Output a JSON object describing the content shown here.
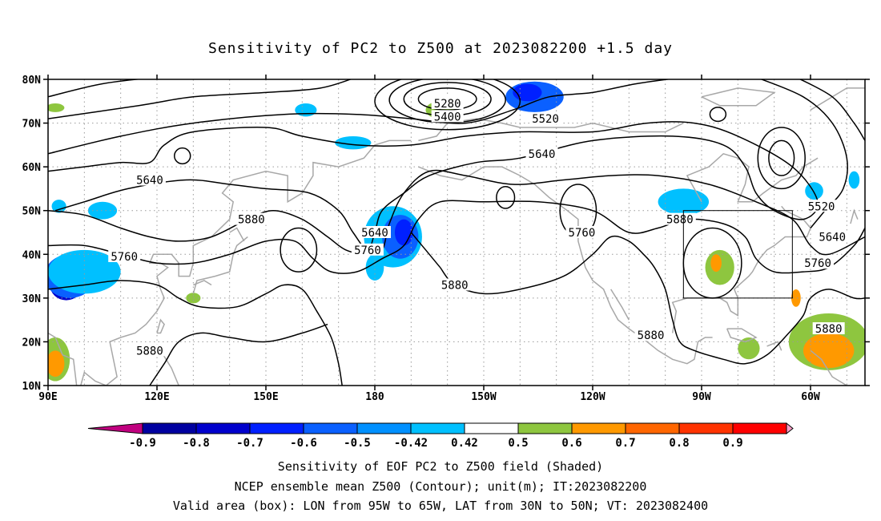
{
  "title": "Sensitivity of PC2 to Z500 at 2023082200 +1.5 day",
  "axes": {
    "lat_labels": [
      "80N",
      "70N",
      "60N",
      "50N",
      "40N",
      "30N",
      "20N",
      "10N"
    ],
    "lat_values": [
      80,
      70,
      60,
      50,
      40,
      30,
      20,
      10
    ],
    "lon_labels": [
      "90E",
      "120E",
      "150E",
      "180",
      "150W",
      "120W",
      "90W",
      "60W"
    ],
    "lon_values": [
      90,
      120,
      150,
      180,
      210,
      240,
      270,
      300
    ],
    "lon_range": [
      90,
      315
    ],
    "lat_range": [
      10,
      80
    ],
    "grid": "dotted"
  },
  "contours": {
    "field": "Z500",
    "unit": "m",
    "labels": [
      {
        "text": "5280",
        "lon": 200,
        "lat": 74.5
      },
      {
        "text": "5400",
        "lon": 200,
        "lat": 71.5
      },
      {
        "text": "5520",
        "lon": 227,
        "lat": 71
      },
      {
        "text": "5640",
        "lon": 118,
        "lat": 57
      },
      {
        "text": "5640",
        "lon": 226,
        "lat": 63
      },
      {
        "text": "5640",
        "lon": 180,
        "lat": 45
      },
      {
        "text": "5640",
        "lon": 306,
        "lat": 44
      },
      {
        "text": "5520",
        "lon": 303,
        "lat": 51
      },
      {
        "text": "5760",
        "lon": 111,
        "lat": 39.5
      },
      {
        "text": "5760",
        "lon": 178,
        "lat": 41
      },
      {
        "text": "5760",
        "lon": 237,
        "lat": 45
      },
      {
        "text": "5760",
        "lon": 302,
        "lat": 38
      },
      {
        "text": "5880",
        "lon": 146,
        "lat": 48
      },
      {
        "text": "5880",
        "lon": 264,
        "lat": 48
      },
      {
        "text": "5880",
        "lon": 202,
        "lat": 33
      },
      {
        "text": "5880",
        "lon": 118,
        "lat": 18
      },
      {
        "text": "5880",
        "lon": 256,
        "lat": 21.5
      },
      {
        "text": "5880",
        "lon": 305,
        "lat": 23
      }
    ]
  },
  "shading": {
    "field": "Sensitivity of EOF PC2",
    "regions": [
      {
        "lon": 95,
        "lat": 33,
        "rlon": 4.5,
        "rlat": 3.5,
        "color": "#0000cd"
      },
      {
        "lon": 96,
        "lat": 35,
        "rlon": 7,
        "rlat": 5,
        "color": "#0a60ff"
      },
      {
        "lon": 100,
        "lat": 36,
        "rlon": 10,
        "rlat": 5,
        "color": "#00c0ff"
      },
      {
        "lon": 185,
        "lat": 44,
        "rlon": 8,
        "rlat": 7,
        "color": "#00c0ff"
      },
      {
        "lon": 187,
        "lat": 44,
        "rlon": 5,
        "rlat": 5,
        "color": "#0a60ff"
      },
      {
        "lon": 188,
        "lat": 45,
        "rlon": 2.5,
        "rlat": 3,
        "color": "#0020ff"
      },
      {
        "lon": 180,
        "lat": 37,
        "rlon": 2.5,
        "rlat": 3,
        "color": "#00c0ff"
      },
      {
        "lon": 224,
        "lat": 76,
        "rlon": 8,
        "rlat": 3.5,
        "color": "#0a60ff"
      },
      {
        "lon": 222,
        "lat": 77,
        "rlon": 4,
        "rlat": 2,
        "color": "#0020ff"
      },
      {
        "lon": 265,
        "lat": 52,
        "rlon": 7,
        "rlat": 3,
        "color": "#00c0ff"
      },
      {
        "lon": 161,
        "lat": 73,
        "rlon": 3,
        "rlat": 1.5,
        "color": "#00c0ff"
      },
      {
        "lon": 174,
        "lat": 65.5,
        "rlon": 5,
        "rlat": 1.5,
        "color": "#00c0ff"
      },
      {
        "lon": 301,
        "lat": 54.5,
        "rlon": 2.5,
        "rlat": 2,
        "color": "#00c0ff"
      },
      {
        "lon": 312,
        "lat": 57,
        "rlon": 1.5,
        "rlat": 2,
        "color": "#00c0ff"
      },
      {
        "lon": 105,
        "lat": 50,
        "rlon": 4,
        "rlat": 2,
        "color": "#00c0ff"
      },
      {
        "lon": 93,
        "lat": 51,
        "rlon": 2,
        "rlat": 1.5,
        "color": "#00c0ff"
      },
      {
        "lon": 198,
        "lat": 73,
        "rlon": 4,
        "rlat": 2,
        "color": "#8ec63f"
      },
      {
        "lon": 275,
        "lat": 37,
        "rlon": 4,
        "rlat": 4,
        "color": "#8ec63f"
      },
      {
        "lon": 274,
        "lat": 38,
        "rlon": 1.5,
        "rlat": 2,
        "color": "#ff9900"
      },
      {
        "lon": 305,
        "lat": 20,
        "rlon": 11,
        "rlat": 6.5,
        "color": "#8ec63f"
      },
      {
        "lon": 305,
        "lat": 18,
        "rlon": 7,
        "rlat": 4,
        "color": "#ff9900"
      },
      {
        "lon": 92,
        "lat": 16,
        "rlon": 4,
        "rlat": 5,
        "color": "#8ec63f"
      },
      {
        "lon": 92,
        "lat": 15,
        "rlon": 2.5,
        "rlat": 3,
        "color": "#ff9900"
      },
      {
        "lon": 296,
        "lat": 30,
        "rlon": 1.3,
        "rlat": 2,
        "color": "#ff9900"
      },
      {
        "lon": 283,
        "lat": 18.5,
        "rlon": 3,
        "rlat": 2.5,
        "color": "#8ec63f"
      },
      {
        "lon": 130,
        "lat": 30,
        "rlon": 2,
        "rlat": 1.2,
        "color": "#8ec63f"
      },
      {
        "lon": 92,
        "lat": 73.5,
        "rlon": 2.5,
        "rlat": 1,
        "color": "#8ec63f"
      }
    ]
  },
  "box": {
    "lon_min": 265,
    "lon_max": 295,
    "lat_min": 30,
    "lat_max": 50
  },
  "colorbar": {
    "labels": [
      "-0.9",
      "-0.8",
      "-0.7",
      "-0.6",
      "-0.5",
      "-0.42",
      "0.42",
      "0.5",
      "0.6",
      "0.7",
      "0.8",
      "0.9"
    ],
    "colors": [
      "#0000a0",
      "#0000cd",
      "#0020ff",
      "#0a60ff",
      "#0090ff",
      "#00c0ff",
      "#ffffff",
      "#8ec63f",
      "#ff9900",
      "#ff6600",
      "#ff3300",
      "#ff0000"
    ],
    "low_end_color": "#c0007f",
    "high_end_color": "#ff9ec8"
  },
  "captions": [
    "Sensitivity of EOF PC2 to Z500 field (Shaded)",
    "NCEP ensemble mean Z500 (Contour); unit(m); IT:2023082200",
    "Valid area (box): LON from 95W to 65W, LAT from 30N to 50N; VT: 2023082400"
  ]
}
